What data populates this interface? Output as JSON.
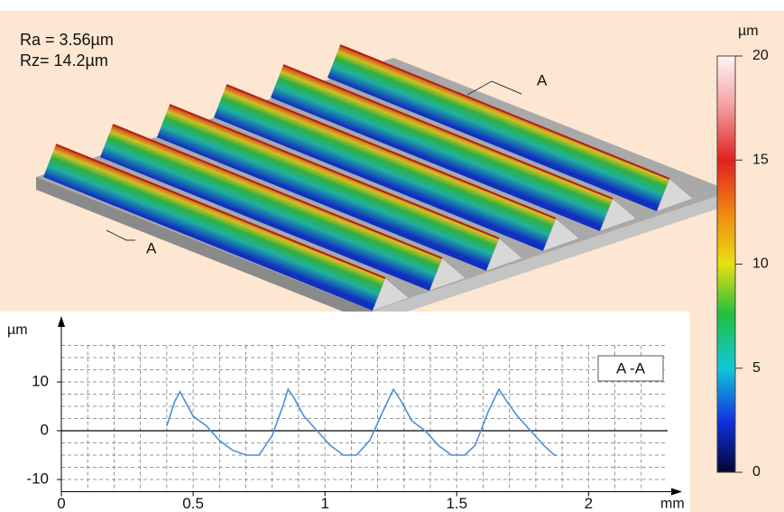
{
  "chart_data": [
    {
      "type": "surface",
      "annotations": [
        "Ra = 3.56µm",
        "Rz= 14.2µm"
      ],
      "section_labels": [
        "A",
        "A"
      ],
      "colorbar": {
        "label": "µm",
        "lim": [
          0,
          20
        ],
        "ticks": [
          0,
          5,
          10,
          15,
          20
        ]
      }
    },
    {
      "type": "line",
      "legend": "A -A",
      "ylabel": "µm",
      "xlabel": "mm",
      "x": [
        0.4,
        0.43,
        0.45,
        0.47,
        0.5,
        0.55,
        0.6,
        0.65,
        0.7,
        0.75,
        0.8,
        0.84,
        0.86,
        0.88,
        0.92,
        0.97,
        1.02,
        1.07,
        1.12,
        1.17,
        1.22,
        1.26,
        1.29,
        1.33,
        1.38,
        1.43,
        1.48,
        1.53,
        1.57,
        1.62,
        1.66,
        1.69,
        1.73,
        1.78,
        1.83,
        1.87,
        1.88
      ],
      "values": [
        1,
        6,
        8,
        6,
        3,
        1,
        -2,
        -4,
        -5,
        -5,
        -1,
        5,
        8.5,
        7,
        3,
        0,
        -3,
        -5,
        -5,
        -2,
        4,
        8.5,
        6,
        2,
        0,
        -3,
        -5,
        -5,
        -3,
        4,
        8.5,
        6,
        3,
        0,
        -3,
        -5,
        -5
      ],
      "color": "#4a8fd8",
      "xlim": [
        0,
        2.3
      ],
      "ylim": [
        -12.5,
        17.5
      ],
      "xticks": [
        0,
        0.5,
        1,
        1.5,
        2
      ],
      "yticks": [
        -10,
        0,
        10
      ],
      "grid": true,
      "minor_xticks": [
        0.1,
        0.2,
        0.3,
        0.4,
        0.6,
        0.7,
        0.8,
        0.9,
        1.1,
        1.2,
        1.3,
        1.4,
        1.6,
        1.7,
        1.8,
        1.9,
        2.1,
        2.2
      ],
      "minor_yticks": [
        -7.5,
        -5,
        -2.5,
        2.5,
        5,
        7.5,
        12.5,
        15,
        17.5
      ]
    }
  ]
}
